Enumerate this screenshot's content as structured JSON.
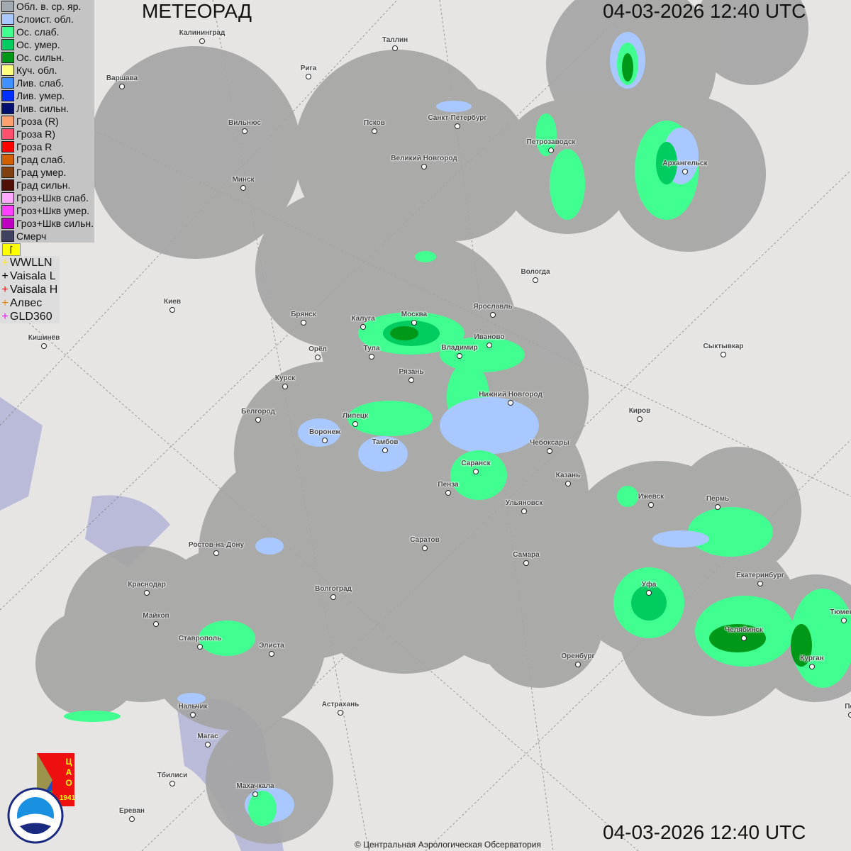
{
  "header": {
    "title": "МЕТЕОРАД",
    "datetime_top": "04-03-2026  12:40 UTC",
    "datetime_bottom": "04-03-2026  12:40 UTC"
  },
  "legend": [
    {
      "label": "Обл. в. ср. яр.",
      "color": "#a0aab0"
    },
    {
      "label": "Слоист. обл.",
      "color": "#a8c8ff"
    },
    {
      "label": "Ос. слаб.",
      "color": "#40ff90"
    },
    {
      "label": "Ос. умер.",
      "color": "#00cc60"
    },
    {
      "label": "Ос. сильн.",
      "color": "#009818"
    },
    {
      "label": "Куч. обл.",
      "color": "#ffff80"
    },
    {
      "label": "Лив. слаб.",
      "color": "#4090ff"
    },
    {
      "label": "Лив. умер.",
      "color": "#0030ff"
    },
    {
      "label": "Лив. сильн.",
      "color": "#001070"
    },
    {
      "label": "Гроза (R)",
      "color": "#ffa070"
    },
    {
      "label": "Гроза R)",
      "color": "#ff5070"
    },
    {
      "label": "Гроза R",
      "color": "#ff0000"
    },
    {
      "label": "Град слаб.",
      "color": "#d06000"
    },
    {
      "label": "Град умер.",
      "color": "#804010"
    },
    {
      "label": "Град сильн.",
      "color": "#501008"
    },
    {
      "label": "Гроз+Шкв слаб.",
      "color": "#ffa8ff"
    },
    {
      "label": "Гроз+Шкв умер.",
      "color": "#ff40ff"
    },
    {
      "label": "Гроз+Шкв сильн.",
      "color": "#c000c0"
    },
    {
      "label": "Смерч",
      "color": "#404060"
    }
  ],
  "lightning": [
    {
      "label": "WWLLN",
      "color": "#ffee00"
    },
    {
      "label": "Vaisala L",
      "color": "#000000"
    },
    {
      "label": "Vaisala H",
      "color": "#ff0000"
    },
    {
      "label": "Алвес",
      "color": "#ff8000"
    },
    {
      "label": "GLD360",
      "color": "#ff00ff"
    }
  ],
  "cities": [
    "Калининград",
    "Таллин",
    "Рига",
    "Варшава",
    "Вильнюс",
    "Псков",
    "Санкт-Петербург",
    "Петрозаводск",
    "Архангельск",
    "Великий Новгород",
    "Минск",
    "Вологда",
    "Киев",
    "Брянск",
    "Ярославль",
    "Москва",
    "Калуга",
    "Кишинёв",
    "Тула",
    "Орёл",
    "Владимир",
    "Иваново",
    "Сыктывкар",
    "Рязань",
    "Курск",
    "Нижний Новгород",
    "Киров",
    "Белгород",
    "Липецк",
    "Воронеж",
    "Тамбов",
    "Чебоксары",
    "Саранск",
    "Казань",
    "Пенза",
    "Ижевск",
    "Пермь",
    "Ульяновск",
    "Ростов-на-Дону",
    "Саратов",
    "Самара",
    "Уфа",
    "Екатеринбург",
    "Краснодар",
    "Волгоград",
    "Майкоп",
    "Тюмень",
    "Челябинск",
    "Ставрополь",
    "Элиста",
    "Оренбург",
    "Курган",
    "Пет",
    "Астрахань",
    "Нальчик",
    "Магас",
    "Махачкала",
    "Тбилиси",
    "Ереван"
  ],
  "logos": {
    "cao": "ЦАО 1941",
    "roshydromet": "РОСГИДРОМЕТ ROSHYDROMET"
  },
  "copyright": "© Центральная Аэрологическая Обсерватория",
  "colors": {
    "radar_coverage": "#a5a5a5",
    "sea": "#b9bbd8",
    "land": "#e7e5e4"
  }
}
